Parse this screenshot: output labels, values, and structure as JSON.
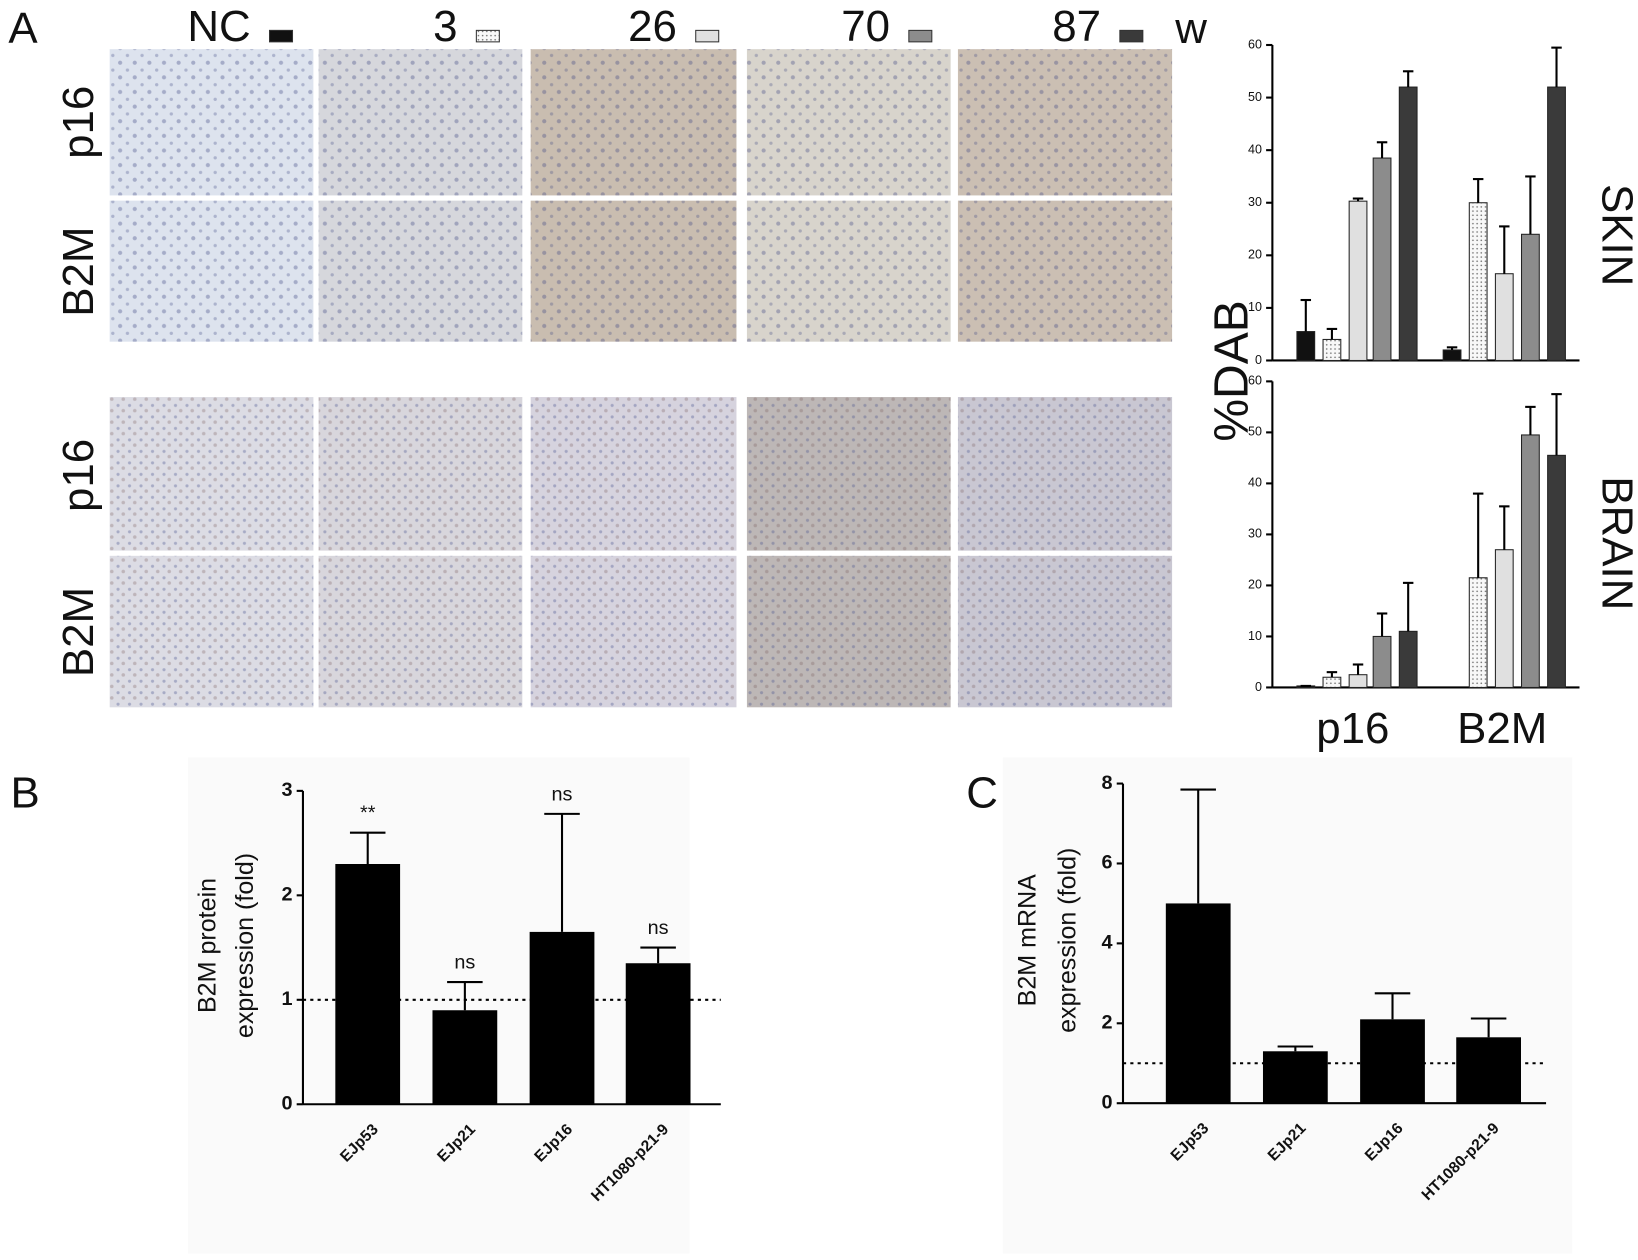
{
  "panel_labels": [
    "A",
    "B",
    "C"
  ],
  "micrographs": {
    "unit": "w",
    "groups": [
      {
        "rows": [
          "p16",
          "B2M"
        ]
      },
      {
        "rows": [
          "p16",
          "B2M"
        ]
      }
    ]
  },
  "chart_data": [
    {
      "type": "bar",
      "title": "SKIN",
      "ylabel": "%DAB",
      "categories": [
        null,
        null
      ],
      "ylim": [
        0,
        60
      ],
      "yticks": [
        0,
        10,
        20,
        30,
        40,
        50,
        60
      ],
      "series": [
        {
          "name": "NC",
          "color": "#111111",
          "values": [
            5.5,
            2
          ],
          "errors": [
            6,
            0.5
          ]
        },
        {
          "name": "3",
          "color": "#f4f4f4",
          "pattern": "dots",
          "values": [
            4,
            30
          ],
          "errors": [
            2,
            4.5
          ]
        },
        {
          "name": "26",
          "color": "#e0e0e0",
          "values": [
            30.3,
            16.5
          ],
          "errors": [
            0.5,
            9
          ]
        },
        {
          "name": "70",
          "color": "#8c8c8c",
          "values": [
            38.5,
            24
          ],
          "errors": [
            3,
            11
          ]
        },
        {
          "name": "87",
          "color": "#3a3a3a",
          "values": [
            52,
            52
          ],
          "errors": [
            3,
            7.5
          ]
        }
      ]
    },
    {
      "type": "bar",
      "title": "BRAIN",
      "categories": [
        "p16",
        "B2M"
      ],
      "ylim": [
        0,
        60
      ],
      "yticks": [
        0,
        10,
        20,
        30,
        40,
        50,
        60
      ],
      "series": [
        {
          "color": "#111111",
          "values": [
            0.3,
            null
          ],
          "errors": [
            0,
            null
          ]
        },
        {
          "color": "#f4f4f4",
          "pattern": "dots",
          "values": [
            2,
            21.5
          ],
          "errors": [
            1,
            16.5
          ]
        },
        {
          "color": "#e0e0e0",
          "values": [
            2.5,
            27
          ],
          "errors": [
            2,
            8.5
          ]
        },
        {
          "color": "#8c8c8c",
          "values": [
            10,
            49.5
          ],
          "errors": [
            4.5,
            5.5
          ]
        },
        {
          "color": "#3a3a3a",
          "values": [
            11,
            45.5
          ],
          "errors": [
            9.5,
            12
          ]
        }
      ]
    },
    {
      "type": "bar",
      "ylabel": [
        "B2M protein",
        "expression (fold)"
      ],
      "categories": [
        "EJp53",
        "EJp21",
        "EJp16",
        "HT1080-p21-9"
      ],
      "values": [
        2.3,
        0.9,
        1.65,
        1.35
      ],
      "errors": [
        0.3,
        0.27,
        1.13,
        0.15
      ],
      "annotations": [
        "**",
        "ns",
        "ns",
        "ns"
      ],
      "color": "#000000",
      "ylim": [
        0,
        3
      ],
      "yticks": [
        0,
        1,
        2,
        3
      ],
      "reference_line": 1
    },
    {
      "type": "bar",
      "ylabel": [
        "B2M mRNA",
        "expression (fold)"
      ],
      "categories": [
        "EJp53",
        "EJp21",
        "EJp16",
        "HT1080-p21-9"
      ],
      "values": [
        5,
        1.3,
        2.1,
        1.65
      ],
      "errors": [
        2.85,
        0.12,
        0.65,
        0.47
      ],
      "color": "#000000",
      "ylim": [
        0,
        8
      ],
      "yticks": [
        0,
        2,
        4,
        6,
        8
      ],
      "reference_line": 1
    }
  ]
}
